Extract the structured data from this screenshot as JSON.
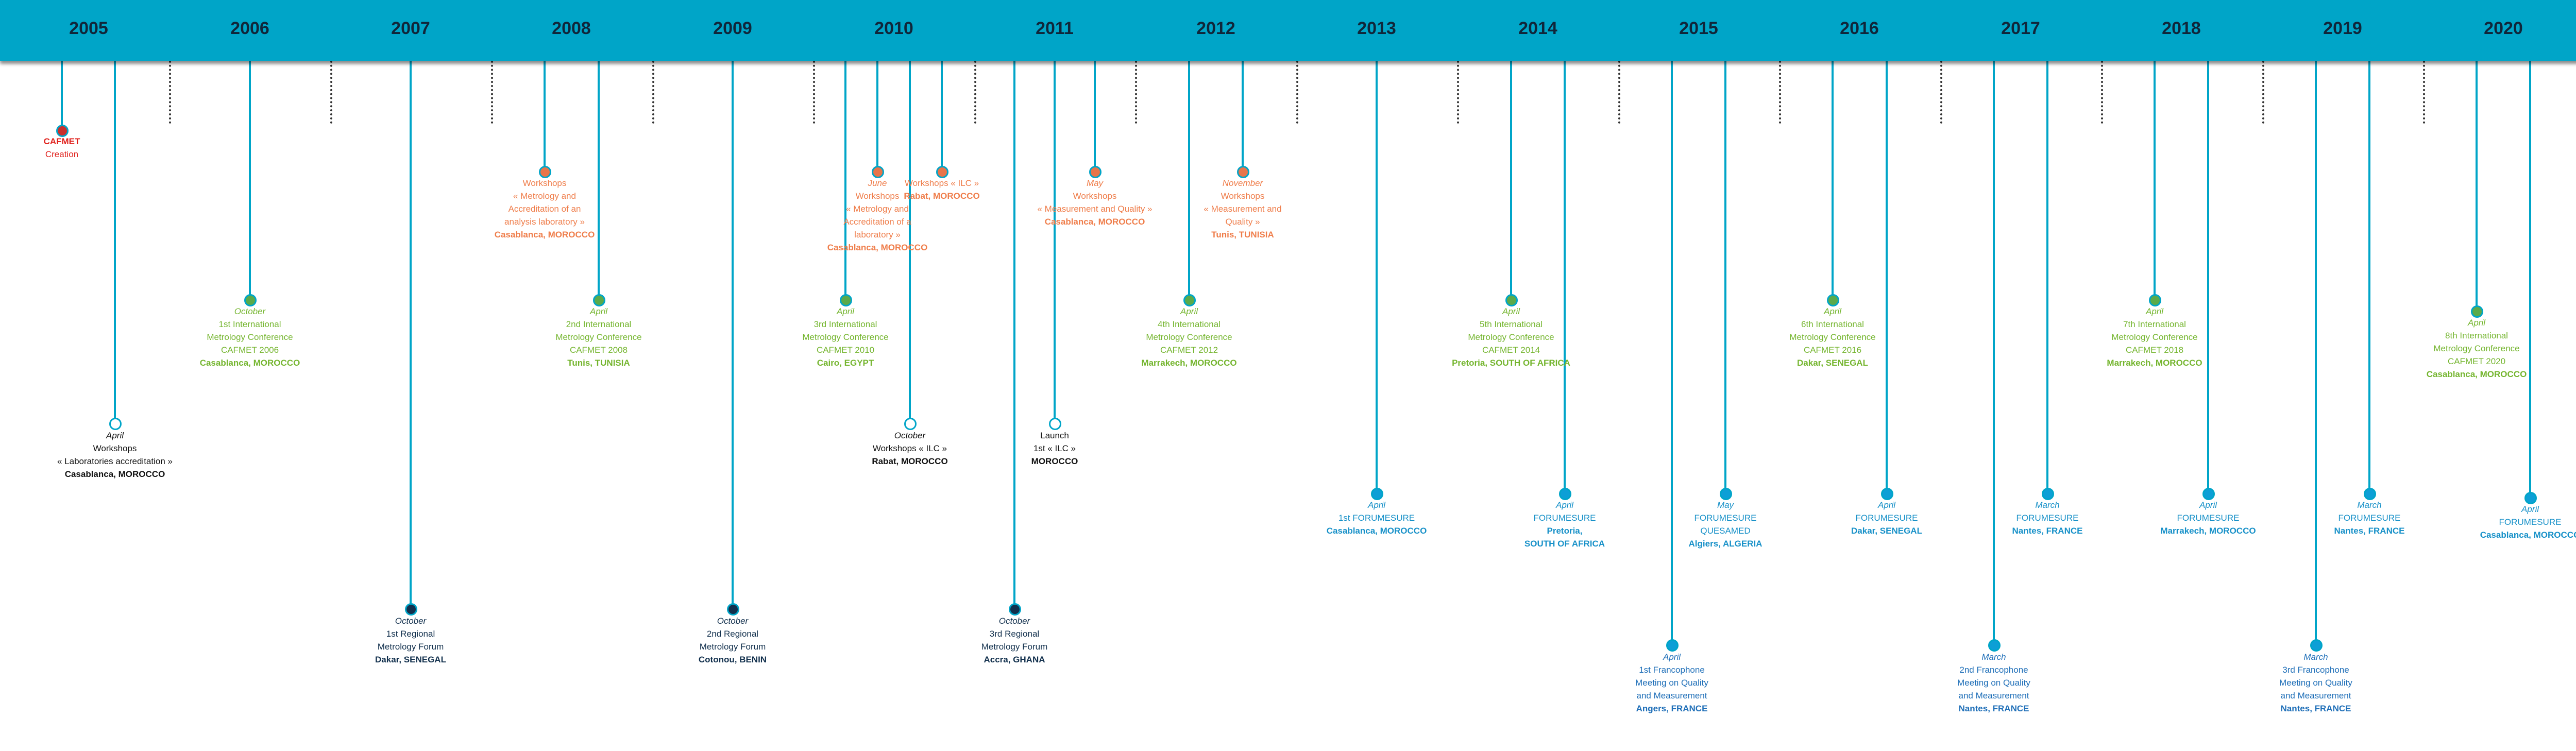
{
  "timeline": {
    "years": [
      "2005",
      "2006",
      "2007",
      "2008",
      "2009",
      "2010",
      "2011",
      "2012",
      "2013",
      "2014",
      "2015",
      "2016",
      "2017",
      "2018",
      "2019",
      "2020"
    ],
    "colors": {
      "band": "#00a5c8",
      "creation": "#e0201b",
      "workshop": "#ef7d4a",
      "conference": "#74b52e",
      "forum": "#12304d",
      "forumesure": "#1690c8",
      "francophone": "#1f6fb8"
    },
    "events": [
      {
        "id": "cafmet-creation",
        "color": "red",
        "lines": [
          "CAFMET",
          "Creation"
        ],
        "styles": [
          "b",
          ""
        ]
      },
      {
        "id": "workshop-2005",
        "color": "black",
        "lines": [
          "April",
          "Workshops",
          "« Laboratories accreditation »",
          "Casablanca, MOROCCO"
        ],
        "styles": [
          "it",
          "",
          "",
          "b"
        ]
      },
      {
        "id": "conf-2006",
        "color": "green",
        "lines": [
          "October",
          "1st International",
          "Metrology Conference",
          "CAFMET 2006",
          "Casablanca, MOROCCO"
        ],
        "styles": [
          "it",
          "",
          "",
          "",
          "b"
        ]
      },
      {
        "id": "forum-2007",
        "color": "navy",
        "lines": [
          "October",
          "1st Regional",
          "Metrology Forum",
          "Dakar, SENEGAL"
        ],
        "styles": [
          "it",
          "",
          "",
          "b"
        ]
      },
      {
        "id": "workshop-2008",
        "color": "orange",
        "lines": [
          "Workshops",
          "« Metrology and",
          "Accreditation of an",
          "analysis laboratory »",
          "Casablanca, MOROCCO"
        ],
        "styles": [
          "",
          "",
          "",
          "",
          "b"
        ]
      },
      {
        "id": "conf-2008",
        "color": "green",
        "lines": [
          "April",
          "2nd International",
          "Metrology Conference",
          "CAFMET 2008",
          "Tunis, TUNISIA"
        ],
        "styles": [
          "it",
          "",
          "",
          "",
          "b"
        ]
      },
      {
        "id": "forum-2009",
        "color": "navy",
        "lines": [
          "October",
          "2nd Regional",
          "Metrology Forum",
          "Cotonou, BENIN"
        ],
        "styles": [
          "it",
          "",
          "",
          "b"
        ]
      },
      {
        "id": "workshop-2010-june",
        "color": "orange",
        "lines": [
          "June",
          "Workshops",
          "« Metrology and",
          "Accreditation of a",
          "laboratory »",
          "Casablanca, MOROCCO"
        ],
        "styles": [
          "it",
          "",
          "",
          "",
          "",
          "b"
        ]
      },
      {
        "id": "workshop-2010-ilc",
        "color": "orange",
        "lines": [
          "Workshops « ILC »",
          "Rabat, MOROCCO"
        ],
        "styles": [
          "",
          "b"
        ]
      },
      {
        "id": "conf-2010",
        "color": "green",
        "lines": [
          "April",
          "3rd International",
          "Metrology Conference",
          "CAFMET 2010",
          "Cairo, EGYPT"
        ],
        "styles": [
          "it",
          "",
          "",
          "",
          "b"
        ]
      },
      {
        "id": "workshop-2010-oct",
        "color": "black",
        "lines": [
          "October",
          "Workshops « ILC »",
          "Rabat, MOROCCO"
        ],
        "styles": [
          "it",
          "",
          "b"
        ]
      },
      {
        "id": "forum-2011",
        "color": "navy",
        "lines": [
          "October",
          "3rd Regional",
          "Metrology Forum",
          "Accra, GHANA"
        ],
        "styles": [
          "it",
          "",
          "",
          "b"
        ]
      },
      {
        "id": "launch-2011",
        "color": "black",
        "lines": [
          "Launch",
          "1st « ILC »",
          "MOROCCO"
        ],
        "styles": [
          "",
          "",
          "b"
        ]
      },
      {
        "id": "workshop-2011",
        "color": "orange",
        "lines": [
          "May",
          "Workshops",
          "« Measurement and Quality »",
          "Casablanca, MOROCCO"
        ],
        "styles": [
          "it",
          "",
          "",
          "b"
        ]
      },
      {
        "id": "conf-2012",
        "color": "green",
        "lines": [
          "April",
          "4th International",
          "Metrology Conference",
          "CAFMET 2012",
          "Marrakech, MOROCCO"
        ],
        "styles": [
          "it",
          "",
          "",
          "",
          "b"
        ]
      },
      {
        "id": "workshop-2012",
        "color": "orange",
        "lines": [
          "November",
          "Workshops",
          "« Measurement and",
          "Quality »",
          "Tunis, TUNISIA"
        ],
        "styles": [
          "it",
          "",
          "",
          "",
          "b"
        ]
      },
      {
        "id": "forumesure-2013",
        "color": "cyan",
        "lines": [
          "April",
          "1st FORUMESURE",
          "Casablanca, MOROCCO"
        ],
        "styles": [
          "it",
          "",
          "b"
        ]
      },
      {
        "id": "conf-2014",
        "color": "green",
        "lines": [
          "April",
          "5th International",
          "Metrology Conference",
          "CAFMET 2014",
          "Pretoria, SOUTH OF AFRICA"
        ],
        "styles": [
          "it",
          "",
          "",
          "",
          "b"
        ]
      },
      {
        "id": "forumesure-2014",
        "color": "cyan",
        "lines": [
          "April",
          "FORUMESURE",
          "Pretoria,",
          "SOUTH OF AFRICA"
        ],
        "styles": [
          "it",
          "",
          "b",
          "b"
        ]
      },
      {
        "id": "francophone-2015",
        "color": "blue",
        "lines": [
          "April",
          "1st Francophone",
          "Meeting on Quality",
          "and Measurement",
          "Angers, FRANCE"
        ],
        "styles": [
          "it",
          "",
          "",
          "",
          "b"
        ]
      },
      {
        "id": "forumesure-2015",
        "color": "cyan",
        "lines": [
          "May",
          "FORUMESURE",
          "QUESAMED",
          "Algiers, ALGERIA"
        ],
        "styles": [
          "it",
          "",
          "",
          "b"
        ]
      },
      {
        "id": "conf-2016",
        "color": "green",
        "lines": [
          "April",
          "6th International",
          "Metrology Conference",
          "CAFMET 2016",
          "Dakar, SENEGAL"
        ],
        "styles": [
          "it",
          "",
          "",
          "",
          "b"
        ]
      },
      {
        "id": "forumesure-2016",
        "color": "cyan",
        "lines": [
          "April",
          "FORUMESURE",
          "Dakar, SENEGAL"
        ],
        "styles": [
          "it",
          "",
          "b"
        ]
      },
      {
        "id": "francophone-2017",
        "color": "blue",
        "lines": [
          "March",
          "2nd Francophone",
          "Meeting on Quality",
          "and Measurement",
          "Nantes, FRANCE"
        ],
        "styles": [
          "it",
          "",
          "",
          "",
          "b"
        ]
      },
      {
        "id": "forumesure-2017",
        "color": "cyan",
        "lines": [
          "March",
          "FORUMESURE",
          "Nantes, FRANCE"
        ],
        "styles": [
          "it",
          "",
          "b"
        ]
      },
      {
        "id": "conf-2018",
        "color": "green",
        "lines": [
          "April",
          "7th International",
          "Metrology Conference",
          "CAFMET 2018",
          "Marrakech, MOROCCO"
        ],
        "styles": [
          "it",
          "",
          "",
          "",
          "b"
        ]
      },
      {
        "id": "forumesure-2018",
        "color": "cyan",
        "lines": [
          "April",
          "FORUMESURE",
          "Marrakech, MOROCCO"
        ],
        "styles": [
          "it",
          "",
          "b"
        ]
      },
      {
        "id": "francophone-2019",
        "color": "blue",
        "lines": [
          "March",
          "3rd Francophone",
          "Meeting on Quality",
          "and Measurement",
          "Nantes, FRANCE"
        ],
        "styles": [
          "it",
          "",
          "",
          "",
          "b"
        ]
      },
      {
        "id": "forumesure-2019",
        "color": "cyan",
        "lines": [
          "March",
          "FORUMESURE",
          "Nantes, FRANCE"
        ],
        "styles": [
          "it",
          "",
          "b"
        ]
      },
      {
        "id": "conf-2020",
        "color": "green",
        "lines": [
          "April",
          "8th International",
          "Metrology Conference",
          "CAFMET 2020",
          "Casablanca, MOROCCO"
        ],
        "styles": [
          "it",
          "",
          "",
          "",
          "b"
        ]
      },
      {
        "id": "forumesure-2020",
        "color": "cyan",
        "lines": [
          "April",
          "FORUMESURE",
          "Casablanca, MOROCCO"
        ],
        "styles": [
          "it",
          "",
          "b"
        ]
      }
    ]
  }
}
